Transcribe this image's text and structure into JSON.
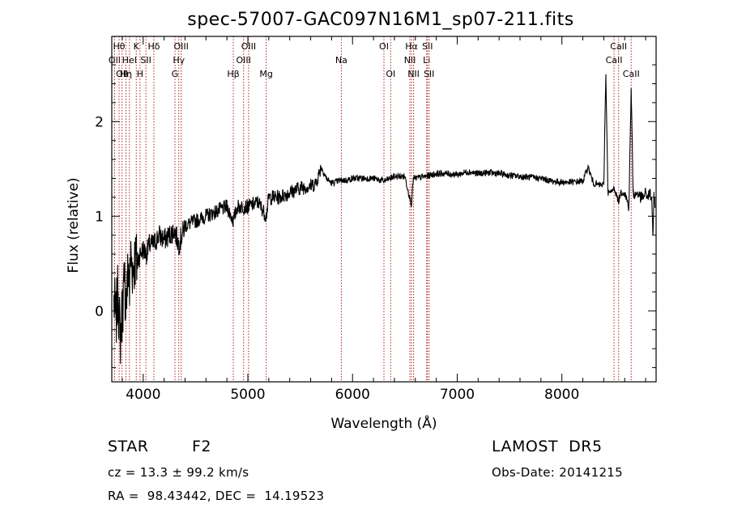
{
  "title": "spec-57007-GAC097N16M1_sp07-211.fits",
  "chart_data": {
    "type": "line",
    "title": "spec-57007-GAC097N16M1_sp07-211.fits",
    "xlabel": "Wavelength (Å)",
    "ylabel": "Flux (relative)",
    "xlim": [
      3700,
      8900
    ],
    "ylim": [
      -0.75,
      2.9
    ],
    "xticks": [
      4000,
      5000,
      6000,
      7000,
      8000
    ],
    "yticks": [
      0,
      1,
      2
    ],
    "grid": false,
    "series": [
      {
        "x": [
          3720,
          3740,
          3760,
          3780,
          3800,
          3820,
          3840,
          3860,
          3870,
          3880,
          3900,
          3920,
          3940,
          3970,
          4000,
          4030,
          4060,
          4100,
          4150,
          4200,
          4250,
          4300,
          4340,
          4400,
          4500,
          4600,
          4700,
          4800,
          4861,
          4900,
          5000,
          5100,
          5175,
          5200,
          5300,
          5400,
          5500,
          5600,
          5650,
          5700,
          5750,
          5800,
          5890,
          5950,
          6000,
          6100,
          6200,
          6300,
          6400,
          6500,
          6563,
          6580,
          6600,
          6700,
          6800,
          6900,
          7000,
          7100,
          7200,
          7300,
          7400,
          7500,
          7600,
          7700,
          7800,
          7900,
          8000,
          8100,
          8200,
          8250,
          8300,
          8350,
          8400,
          8420,
          8440,
          8470,
          8500,
          8542,
          8560,
          8600,
          8640,
          8662,
          8680,
          8700,
          8720,
          8750,
          8780,
          8800,
          8820,
          8840,
          8860,
          8870,
          8880,
          8890
        ],
        "y": [
          0.1,
          -0.1,
          0.2,
          -0.3,
          0.0,
          0.3,
          0.1,
          0.5,
          0.2,
          0.6,
          0.45,
          0.55,
          0.5,
          0.6,
          0.65,
          0.6,
          0.7,
          0.7,
          0.8,
          0.75,
          0.8,
          0.85,
          0.7,
          0.9,
          0.95,
          1.0,
          1.05,
          1.1,
          0.95,
          1.1,
          1.1,
          1.15,
          1.0,
          1.2,
          1.2,
          1.25,
          1.3,
          1.32,
          1.35,
          1.52,
          1.4,
          1.35,
          1.38,
          1.38,
          1.4,
          1.4,
          1.4,
          1.37,
          1.42,
          1.42,
          1.12,
          1.4,
          1.4,
          1.42,
          1.45,
          1.45,
          1.44,
          1.47,
          1.45,
          1.46,
          1.45,
          1.43,
          1.42,
          1.41,
          1.4,
          1.37,
          1.36,
          1.36,
          1.37,
          1.52,
          1.35,
          1.33,
          1.33,
          2.5,
          1.25,
          1.25,
          1.3,
          1.15,
          1.25,
          1.25,
          1.1,
          2.35,
          1.25,
          1.22,
          1.25,
          1.2,
          1.2,
          1.25,
          1.2,
          1.25,
          1.15,
          0.8,
          1.2,
          1.1
        ]
      }
    ],
    "line_markers": [
      {
        "wl": 3727,
        "row": 1,
        "label": "OII"
      },
      {
        "wl": 3770,
        "row": 0,
        "label": "Hθ"
      },
      {
        "wl": 3798,
        "row": 2,
        "label": "OII"
      },
      {
        "wl": 3835,
        "row": 2,
        "label": "Hη"
      },
      {
        "wl": 3869,
        "row": 1,
        "label": "HeI"
      },
      {
        "wl": 3934,
        "row": 0,
        "label": "K"
      },
      {
        "wl": 3970,
        "row": 2,
        "label": "H"
      },
      {
        "wl": 4026,
        "row": 1,
        "label": "SII"
      },
      {
        "wl": 4102,
        "row": 0,
        "label": "Hδ"
      },
      {
        "wl": 4304,
        "row": 2,
        "label": "G"
      },
      {
        "wl": 4340,
        "row": 1,
        "label": "Hγ"
      },
      {
        "wl": 4363,
        "row": 0,
        "label": "OIII"
      },
      {
        "wl": 4861,
        "row": 2,
        "label": "Hβ"
      },
      {
        "wl": 4959,
        "row": 1,
        "label": "OIII"
      },
      {
        "wl": 5007,
        "row": 0,
        "label": "OIII"
      },
      {
        "wl": 5175,
        "row": 2,
        "label": "Mg"
      },
      {
        "wl": 5893,
        "row": 1,
        "label": "Na"
      },
      {
        "wl": 6300,
        "row": 0,
        "label": "OI"
      },
      {
        "wl": 6364,
        "row": 2,
        "label": "OI"
      },
      {
        "wl": 6548,
        "row": 1,
        "label": "NII"
      },
      {
        "wl": 6563,
        "row": 0,
        "label": "Hα"
      },
      {
        "wl": 6583,
        "row": 2,
        "label": "NII"
      },
      {
        "wl": 6708,
        "row": 1,
        "label": "Li"
      },
      {
        "wl": 6716,
        "row": 0,
        "label": "SII"
      },
      {
        "wl": 6731,
        "row": 2,
        "label": "SII"
      },
      {
        "wl": 8498,
        "row": 1,
        "label": "CaII"
      },
      {
        "wl": 8542,
        "row": 0,
        "label": "CaII"
      },
      {
        "wl": 8662,
        "row": 2,
        "label": "CaII"
      }
    ]
  },
  "info": {
    "object_class": "STAR",
    "subclass": "F2",
    "survey": "LAMOST  DR5",
    "redshift_text": "cz = 13.3 ± 99.2 km/s",
    "obs_date": "Obs-Date: 20141215",
    "coords": "RA =  98.43442, DEC =  14.19523"
  },
  "colors": {
    "line": "#000000",
    "marker_line": "#b22222",
    "axis": "#000000",
    "background": "#ffffff"
  }
}
